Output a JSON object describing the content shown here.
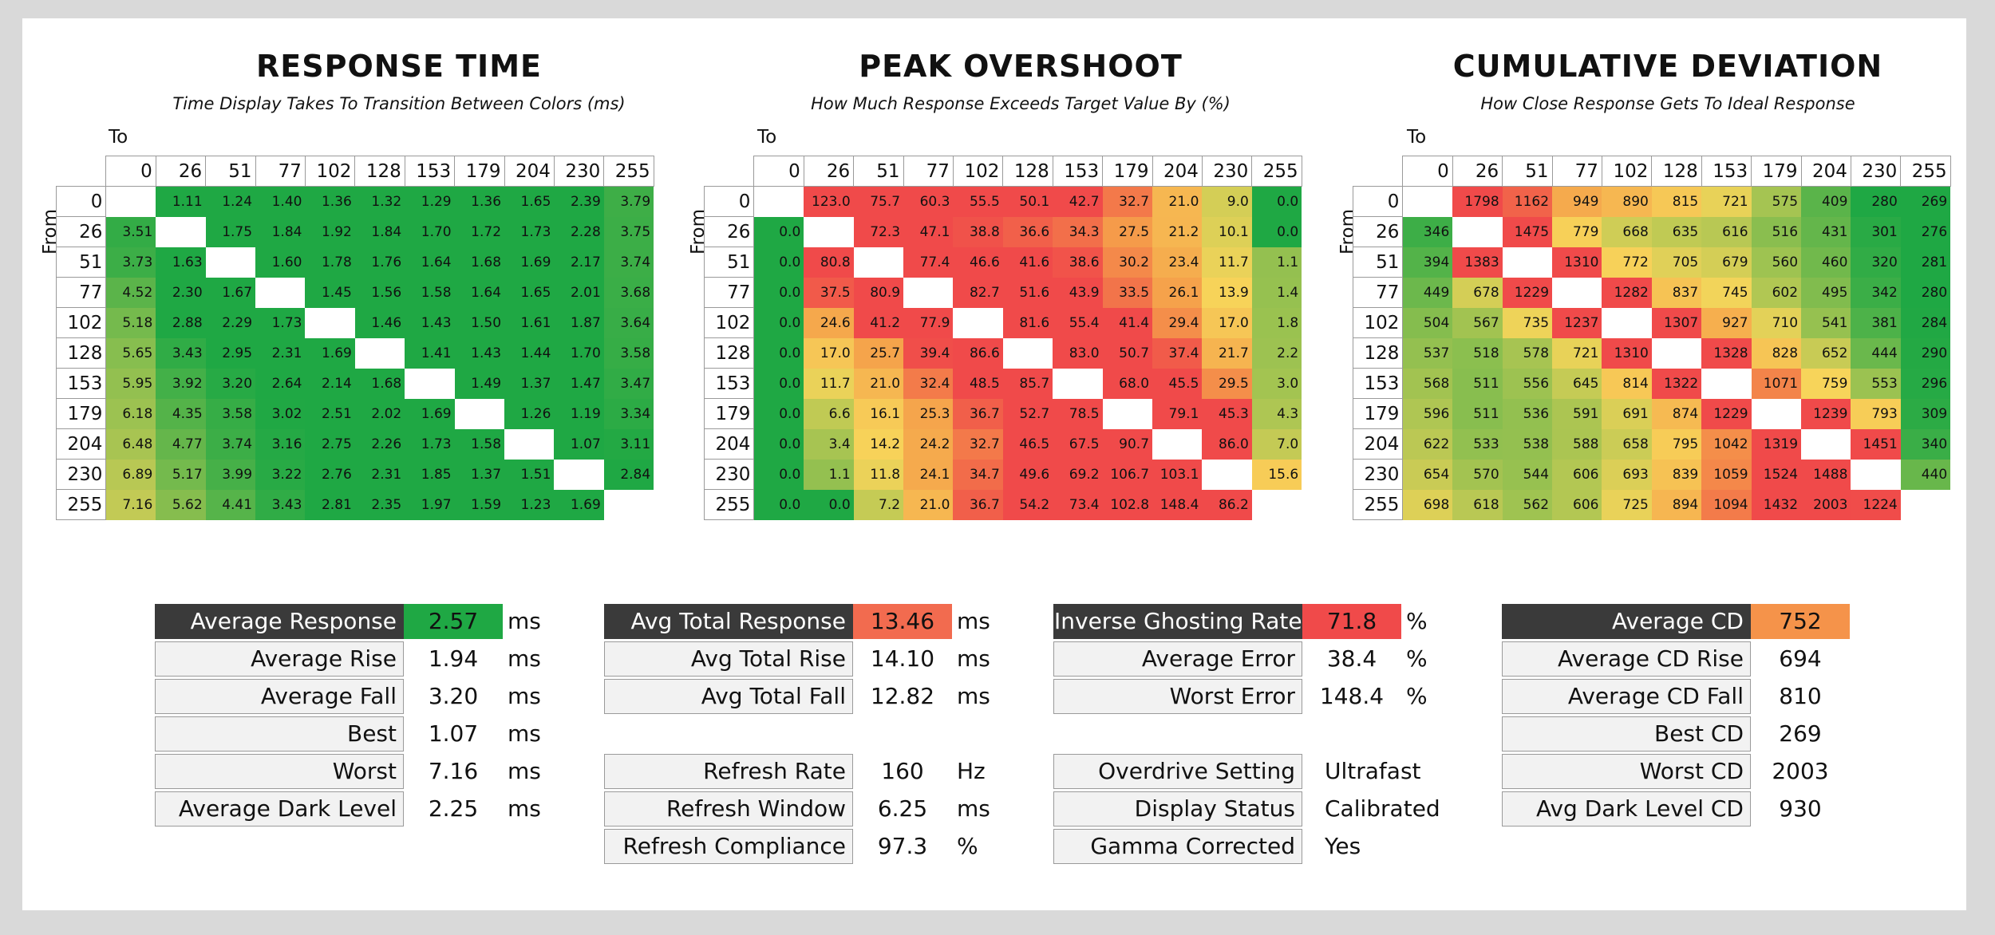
{
  "matrices": [
    {
      "key": "rt",
      "title": "RESPONSE TIME",
      "subtitle": "Time Display Takes To Transition Between Colors (ms)",
      "to_label": "To",
      "from_label": "From",
      "headers": [
        "0",
        "26",
        "51",
        "77",
        "102",
        "128",
        "153",
        "179",
        "204",
        "230",
        "255"
      ],
      "rows": [
        [
          "",
          "1.11",
          "1.24",
          "1.40",
          "1.36",
          "1.32",
          "1.29",
          "1.36",
          "1.65",
          "2.39",
          "3.79"
        ],
        [
          "3.51",
          "",
          "1.75",
          "1.84",
          "1.92",
          "1.84",
          "1.70",
          "1.72",
          "1.73",
          "2.28",
          "3.75"
        ],
        [
          "3.73",
          "1.63",
          "",
          "1.60",
          "1.78",
          "1.76",
          "1.64",
          "1.68",
          "1.69",
          "2.17",
          "3.74"
        ],
        [
          "4.52",
          "2.30",
          "1.67",
          "",
          "1.45",
          "1.56",
          "1.58",
          "1.64",
          "1.65",
          "2.01",
          "3.68"
        ],
        [
          "5.18",
          "2.88",
          "2.29",
          "1.73",
          "",
          "1.46",
          "1.43",
          "1.50",
          "1.61",
          "1.87",
          "3.64"
        ],
        [
          "5.65",
          "3.43",
          "2.95",
          "2.31",
          "1.69",
          "",
          "1.41",
          "1.43",
          "1.44",
          "1.70",
          "3.58"
        ],
        [
          "5.95",
          "3.92",
          "3.20",
          "2.64",
          "2.14",
          "1.68",
          "",
          "1.49",
          "1.37",
          "1.47",
          "3.47"
        ],
        [
          "6.18",
          "4.35",
          "3.58",
          "3.02",
          "2.51",
          "2.02",
          "1.69",
          "",
          "1.26",
          "1.19",
          "3.34"
        ],
        [
          "6.48",
          "4.77",
          "3.74",
          "3.16",
          "2.75",
          "2.26",
          "1.73",
          "1.58",
          "",
          "1.07",
          "3.11"
        ],
        [
          "6.89",
          "5.17",
          "3.99",
          "3.22",
          "2.76",
          "2.31",
          "1.85",
          "1.37",
          "1.51",
          "",
          "2.84"
        ],
        [
          "7.16",
          "5.62",
          "4.41",
          "3.43",
          "2.81",
          "2.35",
          "1.97",
          "1.59",
          "1.23",
          "1.69",
          ""
        ]
      ]
    },
    {
      "key": "os",
      "title": "PEAK OVERSHOOT",
      "subtitle": "How Much Response Exceeds Target Value By (%)",
      "to_label": "To",
      "from_label": "From",
      "headers": [
        "0",
        "26",
        "51",
        "77",
        "102",
        "128",
        "153",
        "179",
        "204",
        "230",
        "255"
      ],
      "rows": [
        [
          "",
          "123.0",
          "75.7",
          "60.3",
          "55.5",
          "50.1",
          "42.7",
          "32.7",
          "21.0",
          "9.0",
          "0.0"
        ],
        [
          "0.0",
          "",
          "72.3",
          "47.1",
          "38.8",
          "36.6",
          "34.3",
          "27.5",
          "21.2",
          "10.1",
          "0.0"
        ],
        [
          "0.0",
          "80.8",
          "",
          "77.4",
          "46.6",
          "41.6",
          "38.6",
          "30.2",
          "23.4",
          "11.7",
          "1.1"
        ],
        [
          "0.0",
          "37.5",
          "80.9",
          "",
          "82.7",
          "51.6",
          "43.9",
          "33.5",
          "26.1",
          "13.9",
          "1.4"
        ],
        [
          "0.0",
          "24.6",
          "41.2",
          "77.9",
          "",
          "81.6",
          "55.4",
          "41.4",
          "29.4",
          "17.0",
          "1.8"
        ],
        [
          "0.0",
          "17.0",
          "25.7",
          "39.4",
          "86.6",
          "",
          "83.0",
          "50.7",
          "37.4",
          "21.7",
          "2.2"
        ],
        [
          "0.0",
          "11.7",
          "21.0",
          "32.4",
          "48.5",
          "85.7",
          "",
          "68.0",
          "45.5",
          "29.5",
          "3.0"
        ],
        [
          "0.0",
          "6.6",
          "16.1",
          "25.3",
          "36.7",
          "52.7",
          "78.5",
          "",
          "79.1",
          "45.3",
          "4.3"
        ],
        [
          "0.0",
          "3.4",
          "14.2",
          "24.2",
          "32.7",
          "46.5",
          "67.5",
          "90.7",
          "",
          "86.0",
          "7.0"
        ],
        [
          "0.0",
          "1.1",
          "11.8",
          "24.1",
          "34.7",
          "49.6",
          "69.2",
          "106.7",
          "103.1",
          "",
          "15.6"
        ],
        [
          "0.0",
          "0.0",
          "7.2",
          "21.0",
          "36.7",
          "54.2",
          "73.4",
          "102.8",
          "148.4",
          "86.2",
          ""
        ]
      ]
    },
    {
      "key": "cd",
      "title": "CUMULATIVE DEVIATION",
      "subtitle": "How Close Response Gets To Ideal Response",
      "to_label": "To",
      "from_label": "From",
      "headers": [
        "0",
        "26",
        "51",
        "77",
        "102",
        "128",
        "153",
        "179",
        "204",
        "230",
        "255"
      ],
      "rows": [
        [
          "",
          "1798",
          "1162",
          "949",
          "890",
          "815",
          "721",
          "575",
          "409",
          "280",
          "269"
        ],
        [
          "346",
          "",
          "1475",
          "779",
          "668",
          "635",
          "616",
          "516",
          "431",
          "301",
          "276"
        ],
        [
          "394",
          "1383",
          "",
          "1310",
          "772",
          "705",
          "679",
          "560",
          "460",
          "320",
          "281"
        ],
        [
          "449",
          "678",
          "1229",
          "",
          "1282",
          "837",
          "745",
          "602",
          "495",
          "342",
          "280"
        ],
        [
          "504",
          "567",
          "735",
          "1237",
          "",
          "1307",
          "927",
          "710",
          "541",
          "381",
          "284"
        ],
        [
          "537",
          "518",
          "578",
          "721",
          "1310",
          "",
          "1328",
          "828",
          "652",
          "444",
          "290"
        ],
        [
          "568",
          "511",
          "556",
          "645",
          "814",
          "1322",
          "",
          "1071",
          "759",
          "553",
          "296"
        ],
        [
          "596",
          "511",
          "536",
          "591",
          "691",
          "874",
          "1229",
          "",
          "1239",
          "793",
          "309"
        ],
        [
          "622",
          "533",
          "538",
          "588",
          "658",
          "795",
          "1042",
          "1319",
          "",
          "1451",
          "340"
        ],
        [
          "654",
          "570",
          "544",
          "606",
          "693",
          "839",
          "1059",
          "1524",
          "1488",
          "",
          "440"
        ],
        [
          "698",
          "618",
          "562",
          "606",
          "725",
          "894",
          "1094",
          "1432",
          "2003",
          "1224",
          ""
        ]
      ]
    }
  ],
  "chart_data": [
    {
      "type": "heatmap",
      "title": "RESPONSE TIME",
      "subtitle": "Time Display Takes To Transition Between Colors (ms)",
      "xlabel": "To",
      "ylabel": "From",
      "categories": [
        "0",
        "26",
        "51",
        "77",
        "102",
        "128",
        "153",
        "179",
        "204",
        "230",
        "255"
      ],
      "value_source": "matrices.0.rows"
    },
    {
      "type": "heatmap",
      "title": "PEAK OVERSHOOT",
      "subtitle": "How Much Response Exceeds Target Value By (%)",
      "xlabel": "To",
      "ylabel": "From",
      "categories": [
        "0",
        "26",
        "51",
        "77",
        "102",
        "128",
        "153",
        "179",
        "204",
        "230",
        "255"
      ],
      "value_source": "matrices.1.rows"
    },
    {
      "type": "heatmap",
      "title": "CUMULATIVE DEVIATION",
      "subtitle": "How Close Response Gets To Ideal Response",
      "xlabel": "To",
      "ylabel": "From",
      "categories": [
        "0",
        "26",
        "51",
        "77",
        "102",
        "128",
        "153",
        "179",
        "204",
        "230",
        "255"
      ],
      "value_source": "matrices.2.rows"
    }
  ],
  "colors": {
    "green": "#1fa844",
    "yellow": "#f7d55a",
    "orange": "#f5a04a",
    "red": "#f04a4a",
    "header_dark": "#3a3a3a",
    "label_bg": "#f2f2f2"
  },
  "stats": {
    "response": {
      "head": {
        "label": "Average Response",
        "value": "2.57",
        "unit": "ms",
        "color": "#1fa844"
      },
      "rows": [
        {
          "label": "Average Rise",
          "value": "1.94",
          "unit": "ms"
        },
        {
          "label": "Average Fall",
          "value": "3.20",
          "unit": "ms"
        },
        {
          "label": "Best",
          "value": "1.07",
          "unit": "ms"
        },
        {
          "label": "Worst",
          "value": "7.16",
          "unit": "ms"
        },
        {
          "label": "Average Dark Level",
          "value": "2.25",
          "unit": "ms"
        }
      ]
    },
    "total": {
      "head": {
        "label": "Avg Total Response",
        "value": "13.46",
        "unit": "ms",
        "color": "#f26b4f"
      },
      "rows": [
        {
          "label": "Avg Total Rise",
          "value": "14.10",
          "unit": "ms"
        },
        {
          "label": "Avg Total Fall",
          "value": "12.82",
          "unit": "ms"
        }
      ],
      "refresh": [
        {
          "label": "Refresh Rate",
          "value": "160",
          "unit": "Hz"
        },
        {
          "label": "Refresh Window",
          "value": "6.25",
          "unit": "ms"
        },
        {
          "label": "Refresh Compliance",
          "value": "97.3",
          "unit": "%"
        }
      ]
    },
    "ghost": {
      "head": {
        "label": "Inverse Ghosting Rate",
        "value": "71.8",
        "unit": "%",
        "color": "#f04a4a"
      },
      "rows": [
        {
          "label": "Average Error",
          "value": "38.4",
          "unit": "%"
        },
        {
          "label": "Worst Error",
          "value": "148.4",
          "unit": "%"
        }
      ],
      "settings": [
        {
          "label": "Overdrive Setting",
          "value": "Ultrafast"
        },
        {
          "label": "Display Status",
          "value": "Calibrated"
        },
        {
          "label": "Gamma Corrected",
          "value": "Yes"
        }
      ]
    },
    "cd": {
      "head": {
        "label": "Average CD",
        "value": "752",
        "color": "#f5934a"
      },
      "rows": [
        {
          "label": "Average CD Rise",
          "value": "694"
        },
        {
          "label": "Average CD Fall",
          "value": "810"
        },
        {
          "label": "Best CD",
          "value": "269"
        },
        {
          "label": "Worst CD",
          "value": "2003"
        },
        {
          "label": "Avg Dark Level CD",
          "value": "930"
        }
      ]
    }
  }
}
